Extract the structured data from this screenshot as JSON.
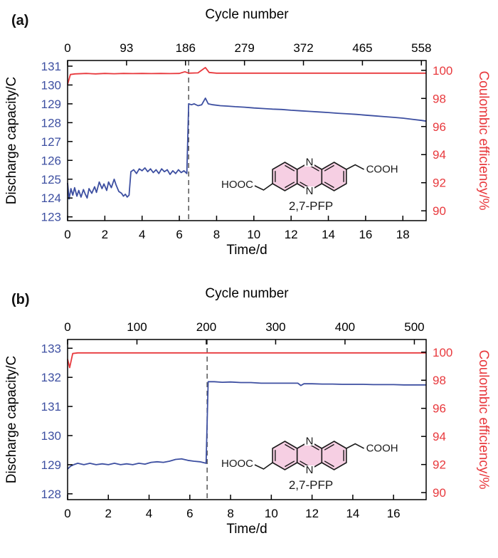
{
  "colors": {
    "capacity_blue": "#3d4fa1",
    "efficiency_red": "#e8393d",
    "axis_black": "#000000",
    "dashed_gray": "#555555",
    "ring_pink": "#f6cfe3"
  },
  "panels": [
    {
      "label": "(a)",
      "inset": {
        "left_group": "HOOC",
        "right_group": "COOH",
        "n_top": "N",
        "n_bottom": "N",
        "name": "2,7-PFP"
      }
    },
    {
      "label": "(b)",
      "inset": {
        "left_group": "HOOC",
        "right_group": "COOH",
        "n_top": "N",
        "n_bottom": "N",
        "name": "2,7-PFP"
      }
    }
  ],
  "chart_data": [
    {
      "type": "line",
      "panel": "(a)",
      "title": "Cycle number",
      "xlabel": "Time/d",
      "ylabel_left": "Discharge capacity/C",
      "ylabel_right": "Coulombic efficiency/%",
      "x_bottom": {
        "range": [
          0,
          19.25
        ],
        "ticks": [
          0,
          2,
          4,
          6,
          8,
          10,
          12,
          14,
          16,
          18
        ]
      },
      "x_top": {
        "range": [
          0,
          565.5
        ],
        "ticks": [
          0,
          93,
          186,
          279,
          372,
          465,
          558
        ]
      },
      "y_left": {
        "range": [
          122.8,
          131.3
        ],
        "ticks": [
          123,
          124,
          125,
          126,
          127,
          128,
          129,
          130,
          131
        ]
      },
      "y_right": {
        "range": [
          89.3,
          100.7
        ],
        "ticks": [
          90,
          92,
          94,
          96,
          98,
          100
        ]
      },
      "dashed_x": 6.5,
      "series": [
        {
          "name": "discharge-capacity",
          "axis": "left",
          "color_key": "capacity_blue",
          "points": [
            [
              0,
              124.8
            ],
            [
              0.08,
              123.95
            ],
            [
              0.18,
              124.5
            ],
            [
              0.28,
              124.15
            ],
            [
              0.38,
              124.55
            ],
            [
              0.5,
              124.1
            ],
            [
              0.6,
              124.4
            ],
            [
              0.72,
              124.05
            ],
            [
              0.85,
              124.45
            ],
            [
              0.95,
              124.2
            ],
            [
              1.05,
              124.0
            ],
            [
              1.15,
              124.5
            ],
            [
              1.3,
              124.25
            ],
            [
              1.45,
              124.6
            ],
            [
              1.55,
              124.3
            ],
            [
              1.7,
              124.85
            ],
            [
              1.85,
              124.5
            ],
            [
              1.95,
              124.75
            ],
            [
              2.1,
              124.4
            ],
            [
              2.2,
              124.85
            ],
            [
              2.35,
              124.55
            ],
            [
              2.5,
              125.0
            ],
            [
              2.6,
              124.7
            ],
            [
              2.75,
              124.35
            ],
            [
              2.9,
              124.25
            ],
            [
              3.0,
              124.1
            ],
            [
              3.1,
              124.2
            ],
            [
              3.2,
              124.05
            ],
            [
              3.3,
              124.15
            ],
            [
              3.4,
              125.4
            ],
            [
              3.55,
              125.5
            ],
            [
              3.7,
              125.3
            ],
            [
              3.85,
              125.55
            ],
            [
              4.0,
              125.45
            ],
            [
              4.15,
              125.6
            ],
            [
              4.3,
              125.4
            ],
            [
              4.45,
              125.55
            ],
            [
              4.6,
              125.35
            ],
            [
              4.75,
              125.5
            ],
            [
              4.9,
              125.3
            ],
            [
              5.05,
              125.55
            ],
            [
              5.2,
              125.4
            ],
            [
              5.35,
              125.5
            ],
            [
              5.5,
              125.25
            ],
            [
              5.65,
              125.45
            ],
            [
              5.8,
              125.3
            ],
            [
              5.95,
              125.5
            ],
            [
              6.1,
              125.35
            ],
            [
              6.25,
              125.45
            ],
            [
              6.4,
              125.3
            ],
            [
              6.5,
              129.0
            ],
            [
              6.65,
              128.95
            ],
            [
              6.8,
              129.0
            ],
            [
              7.0,
              128.9
            ],
            [
              7.2,
              128.95
            ],
            [
              7.4,
              129.3
            ],
            [
              7.55,
              129.0
            ],
            [
              7.8,
              128.95
            ],
            [
              8.2,
              128.9
            ],
            [
              8.6,
              128.88
            ],
            [
              9.0,
              128.85
            ],
            [
              9.5,
              128.82
            ],
            [
              10,
              128.78
            ],
            [
              10.5,
              128.75
            ],
            [
              11,
              128.72
            ],
            [
              11.5,
              128.7
            ],
            [
              12,
              128.66
            ],
            [
              12.5,
              128.63
            ],
            [
              13,
              128.6
            ],
            [
              13.5,
              128.57
            ],
            [
              14,
              128.54
            ],
            [
              14.5,
              128.5
            ],
            [
              15,
              128.47
            ],
            [
              15.5,
              128.44
            ],
            [
              16,
              128.4
            ],
            [
              16.5,
              128.36
            ],
            [
              17,
              128.32
            ],
            [
              17.5,
              128.28
            ],
            [
              18,
              128.24
            ],
            [
              18.5,
              128.18
            ],
            [
              19,
              128.12
            ],
            [
              19.25,
              128.08
            ]
          ]
        },
        {
          "name": "coulombic-efficiency",
          "axis": "right",
          "color_key": "efficiency_red",
          "points": [
            [
              0,
              99.0
            ],
            [
              0.15,
              99.7
            ],
            [
              0.4,
              99.75
            ],
            [
              1,
              99.78
            ],
            [
              1.5,
              99.75
            ],
            [
              2,
              99.78
            ],
            [
              2.5,
              99.76
            ],
            [
              3,
              99.78
            ],
            [
              3.5,
              99.77
            ],
            [
              4,
              99.78
            ],
            [
              4.5,
              99.77
            ],
            [
              5,
              99.78
            ],
            [
              5.5,
              99.77
            ],
            [
              6,
              99.78
            ],
            [
              6.3,
              99.9
            ],
            [
              6.5,
              99.8
            ],
            [
              7,
              99.82
            ],
            [
              7.4,
              100.2
            ],
            [
              7.6,
              99.85
            ],
            [
              8,
              99.8
            ],
            [
              9,
              99.8
            ],
            [
              10,
              99.8
            ],
            [
              11,
              99.8
            ],
            [
              12,
              99.8
            ],
            [
              13,
              99.8
            ],
            [
              14,
              99.8
            ],
            [
              15,
              99.8
            ],
            [
              16,
              99.8
            ],
            [
              17,
              99.8
            ],
            [
              18,
              99.8
            ],
            [
              19,
              99.8
            ],
            [
              19.25,
              99.8
            ]
          ]
        }
      ]
    },
    {
      "type": "line",
      "panel": "(b)",
      "title": "Cycle number",
      "xlabel": "Time/d",
      "ylabel_left": "Discharge capacity/C",
      "ylabel_right": "Coulombic efficiency/%",
      "x_bottom": {
        "range": [
          0,
          17.6
        ],
        "ticks": [
          0,
          2,
          4,
          6,
          8,
          10,
          12,
          14,
          16
        ]
      },
      "x_top": {
        "range": [
          0,
          517
        ],
        "ticks": [
          0,
          100,
          200,
          300,
          400,
          500
        ]
      },
      "y_left": {
        "range": [
          127.8,
          133.3
        ],
        "ticks": [
          128,
          129,
          130,
          131,
          132,
          133
        ]
      },
      "y_right": {
        "range": [
          89.5,
          100.9
        ],
        "ticks": [
          90,
          92,
          94,
          96,
          98,
          100
        ]
      },
      "dashed_x": 6.85,
      "series": [
        {
          "name": "discharge-capacity",
          "axis": "left",
          "color_key": "capacity_blue",
          "points": [
            [
              0,
              128.85
            ],
            [
              0.15,
              128.95
            ],
            [
              0.3,
              129.0
            ],
            [
              0.5,
              129.05
            ],
            [
              0.8,
              129.0
            ],
            [
              1.1,
              129.05
            ],
            [
              1.4,
              129.0
            ],
            [
              1.7,
              129.03
            ],
            [
              2.0,
              129.0
            ],
            [
              2.3,
              129.05
            ],
            [
              2.6,
              129.0
            ],
            [
              2.9,
              129.03
            ],
            [
              3.2,
              129.0
            ],
            [
              3.5,
              129.05
            ],
            [
              3.8,
              129.02
            ],
            [
              4.1,
              129.08
            ],
            [
              4.4,
              129.1
            ],
            [
              4.7,
              129.08
            ],
            [
              5.0,
              129.12
            ],
            [
              5.3,
              129.18
            ],
            [
              5.6,
              129.2
            ],
            [
              5.9,
              129.15
            ],
            [
              6.2,
              129.12
            ],
            [
              6.5,
              129.1
            ],
            [
              6.8,
              129.05
            ],
            [
              6.9,
              131.85
            ],
            [
              7.2,
              131.85
            ],
            [
              7.6,
              131.83
            ],
            [
              8.0,
              131.84
            ],
            [
              8.5,
              131.82
            ],
            [
              9.0,
              131.82
            ],
            [
              9.5,
              131.8
            ],
            [
              10,
              131.8
            ],
            [
              10.5,
              131.8
            ],
            [
              11,
              131.8
            ],
            [
              11.3,
              131.8
            ],
            [
              11.45,
              131.72
            ],
            [
              11.6,
              131.78
            ],
            [
              12,
              131.78
            ],
            [
              12.5,
              131.77
            ],
            [
              13,
              131.77
            ],
            [
              13.5,
              131.76
            ],
            [
              14,
              131.76
            ],
            [
              14.5,
              131.76
            ],
            [
              15,
              131.75
            ],
            [
              15.5,
              131.75
            ],
            [
              16,
              131.75
            ],
            [
              16.5,
              131.74
            ],
            [
              17,
              131.74
            ],
            [
              17.6,
              131.74
            ]
          ]
        },
        {
          "name": "coulombic-efficiency",
          "axis": "right",
          "color_key": "efficiency_red",
          "points": [
            [
              0,
              99.5
            ],
            [
              0.1,
              98.9
            ],
            [
              0.25,
              99.9
            ],
            [
              0.5,
              99.95
            ],
            [
              1,
              99.95
            ],
            [
              2,
              99.95
            ],
            [
              3,
              99.95
            ],
            [
              4,
              99.95
            ],
            [
              5,
              99.95
            ],
            [
              6,
              99.95
            ],
            [
              7,
              99.95
            ],
            [
              8,
              99.95
            ],
            [
              9,
              99.95
            ],
            [
              10,
              99.95
            ],
            [
              11,
              99.95
            ],
            [
              12,
              99.95
            ],
            [
              13,
              99.95
            ],
            [
              14,
              99.95
            ],
            [
              15,
              99.95
            ],
            [
              16,
              99.95
            ],
            [
              17,
              99.95
            ],
            [
              17.6,
              99.95
            ]
          ]
        }
      ]
    }
  ]
}
